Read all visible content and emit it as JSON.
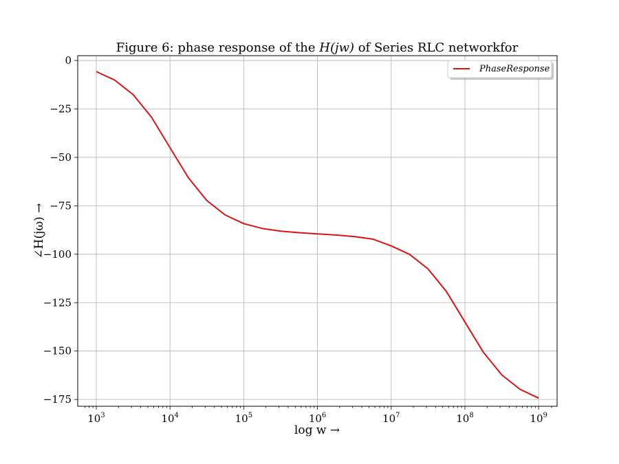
{
  "chart_data": {
    "type": "line",
    "title": "Figure 6: phase response of the H(jw) of Series RLC networkfor",
    "title_prefix": "Figure 6:  phase response of the ",
    "title_math": "H(jw)",
    "title_suffix": " of Series RLC networkfor",
    "xlabel": "log w →",
    "ylabel": "∠H(jω) →",
    "x_scale": "log",
    "xlim": [
      560,
      1780000000
    ],
    "ylim": [
      -178.5,
      2.5
    ],
    "x_ticks": [
      {
        "value": 1000,
        "base": "10",
        "exp": "3"
      },
      {
        "value": 10000,
        "base": "10",
        "exp": "4"
      },
      {
        "value": 100000,
        "base": "10",
        "exp": "5"
      },
      {
        "value": 1000000,
        "base": "10",
        "exp": "6"
      },
      {
        "value": 10000000,
        "base": "10",
        "exp": "7"
      },
      {
        "value": 100000000,
        "base": "10",
        "exp": "8"
      },
      {
        "value": 1000000000,
        "base": "10",
        "exp": "9"
      }
    ],
    "y_ticks": [
      {
        "value": 0,
        "label": "0"
      },
      {
        "value": -25,
        "label": "−25"
      },
      {
        "value": -50,
        "label": "−50"
      },
      {
        "value": -75,
        "label": "−75"
      },
      {
        "value": -100,
        "label": "−100"
      },
      {
        "value": -125,
        "label": "−125"
      },
      {
        "value": -150,
        "label": "−150"
      },
      {
        "value": -175,
        "label": "−175"
      }
    ],
    "grid": true,
    "legend_position": "top-right",
    "series": [
      {
        "name": "PhaseResponse",
        "color": "#dd1111",
        "x": [
          1000,
          1778,
          3162,
          5623,
          10000,
          17783,
          31623,
          56234,
          100000,
          177828,
          316228,
          562341,
          1000000,
          1778279,
          3162278,
          5623413,
          10000000,
          17782794,
          31622777,
          56234133,
          100000000,
          177827941,
          316227766,
          562341325,
          1000000000
        ],
        "y": [
          -5.7,
          -10.1,
          -17.6,
          -29.3,
          -45.0,
          -60.6,
          -72.3,
          -79.8,
          -84.2,
          -86.7,
          -88.1,
          -88.9,
          -89.5,
          -90.1,
          -90.9,
          -92.2,
          -95.7,
          -100.1,
          -107.6,
          -119.3,
          -135.0,
          -150.6,
          -162.3,
          -169.8,
          -174.3
        ]
      }
    ]
  }
}
